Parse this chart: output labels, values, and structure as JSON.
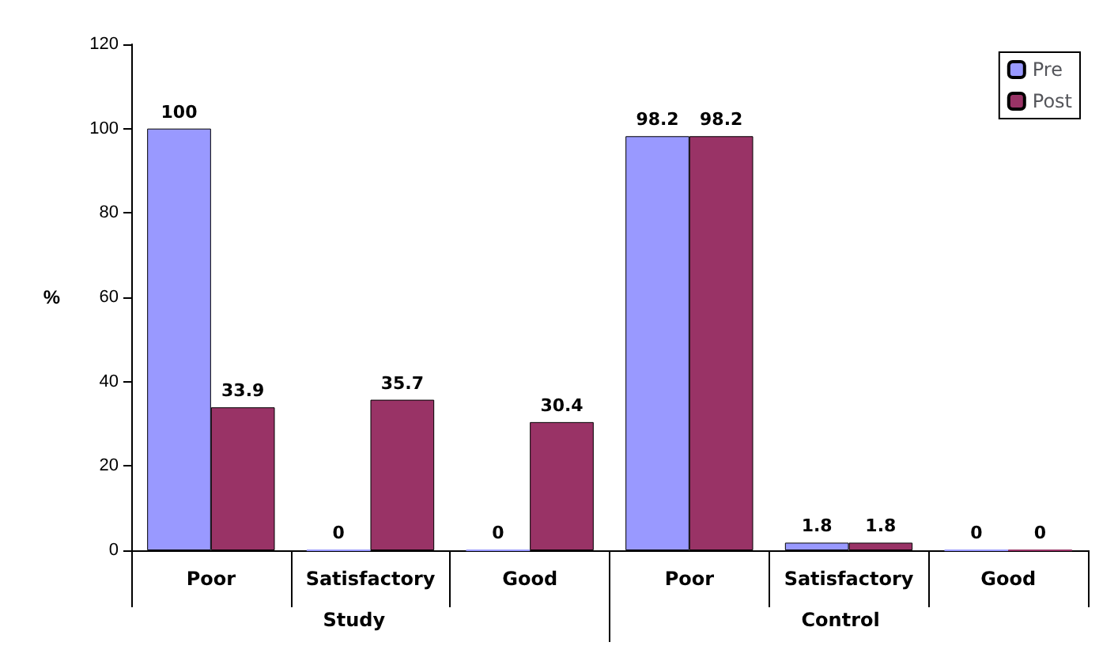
{
  "chart_data": {
    "type": "bar",
    "ylabel": "%",
    "categories": [
      "Poor",
      "Satisfactory",
      "Good",
      "Poor",
      "Satisfactory",
      "Good"
    ],
    "series": [
      {
        "name": "Pre",
        "color": "#9999ff",
        "values": [
          100,
          0,
          0,
          98.2,
          1.8,
          0
        ]
      },
      {
        "name": "Post",
        "color": "#993366",
        "values": [
          33.9,
          35.7,
          30.4,
          98.2,
          1.8,
          0
        ]
      }
    ],
    "ylim": [
      0,
      120
    ],
    "yticks": [
      0,
      20,
      40,
      60,
      80,
      100,
      120
    ],
    "data_labels": true,
    "legend": "top right",
    "grid": false,
    "annotations": [
      "Study",
      "Control"
    ]
  }
}
